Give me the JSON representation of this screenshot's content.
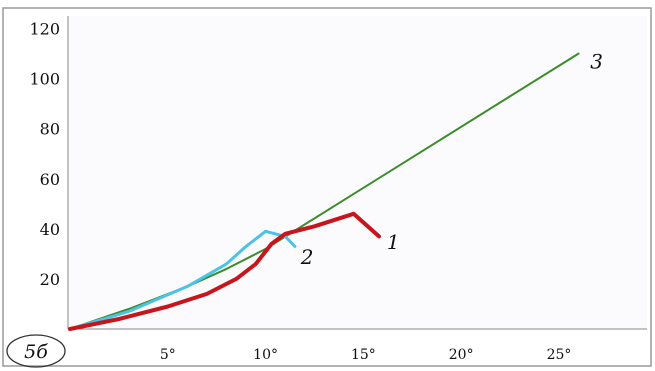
{
  "chart_data": {
    "type": "line",
    "panel_label": "5б",
    "xlim": [
      0,
      29.5
    ],
    "ylim": [
      0,
      125
    ],
    "yticks": [
      20,
      40,
      60,
      80,
      100,
      120
    ],
    "xticks": [
      5,
      10,
      15,
      20,
      25
    ],
    "xtick_labels": [
      "5°",
      "10°",
      "15°",
      "20°",
      "25°"
    ],
    "grid": false,
    "series": [
      {
        "name": "1",
        "color": "#c8141b",
        "points": [
          [
            0,
            0
          ],
          [
            2.5,
            4
          ],
          [
            5,
            9
          ],
          [
            7,
            14
          ],
          [
            8.5,
            20
          ],
          [
            9.5,
            26
          ],
          [
            10.3,
            34
          ],
          [
            11,
            38
          ],
          [
            12.5,
            41
          ],
          [
            14.5,
            46
          ],
          [
            15.8,
            37
          ]
        ]
      },
      {
        "name": "2",
        "color": "#4bc3e6",
        "points": [
          [
            0,
            0
          ],
          [
            3,
            7
          ],
          [
            6,
            17
          ],
          [
            8,
            26
          ],
          [
            9,
            33
          ],
          [
            10,
            39
          ],
          [
            11,
            37
          ],
          [
            11.5,
            33
          ]
        ]
      },
      {
        "name": "3",
        "color": "#3c8c2b",
        "points": [
          [
            0,
            0
          ],
          [
            3,
            8
          ],
          [
            6,
            17
          ],
          [
            8,
            24
          ],
          [
            10,
            32
          ],
          [
            26,
            110
          ]
        ]
      }
    ]
  }
}
